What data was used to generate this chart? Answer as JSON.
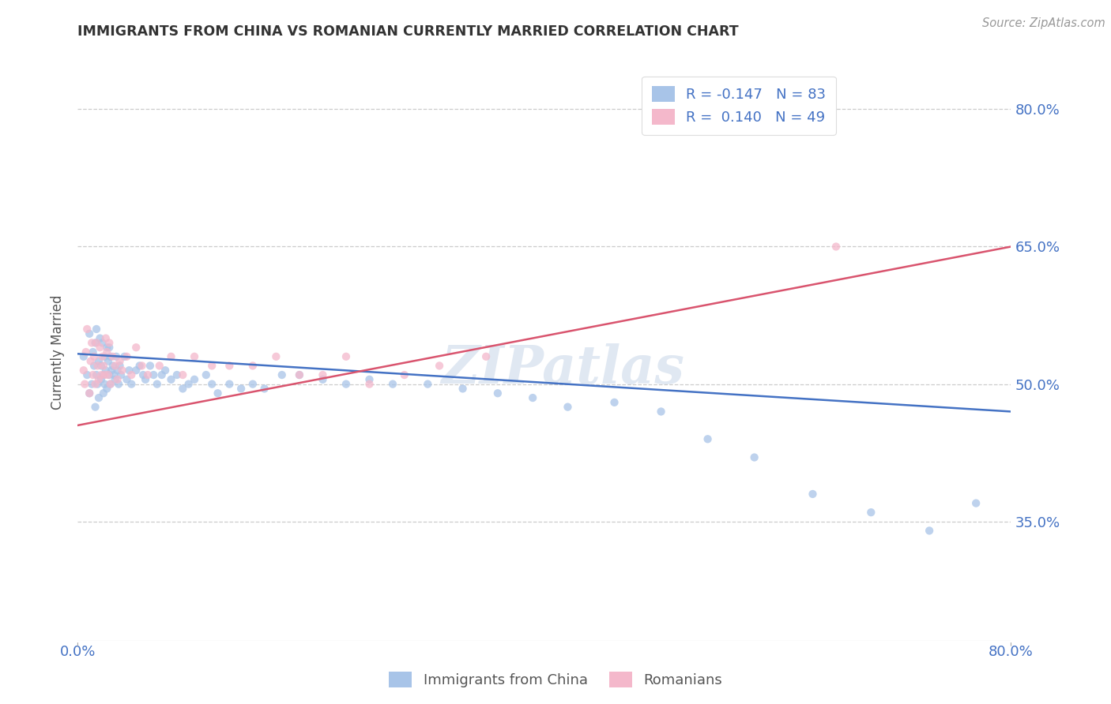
{
  "title": "IMMIGRANTS FROM CHINA VS ROMANIAN CURRENTLY MARRIED CORRELATION CHART",
  "source": "Source: ZipAtlas.com",
  "ylabel": "Currently Married",
  "xlim": [
    0.0,
    0.8
  ],
  "ylim": [
    0.22,
    0.85
  ],
  "yticks": [
    0.35,
    0.5,
    0.65,
    0.8
  ],
  "ytick_labels": [
    "35.0%",
    "50.0%",
    "65.0%",
    "80.0%"
  ],
  "xticks": [
    0.0,
    0.8
  ],
  "xtick_labels": [
    "0.0%",
    "80.0%"
  ],
  "china_color": "#a8c4e8",
  "romania_color": "#f4b8cb",
  "china_line_color": "#4472c4",
  "romania_line_color": "#d9546e",
  "R_china": -0.147,
  "N_china": 83,
  "R_romania": 0.14,
  "N_romania": 49,
  "legend_label_china": "Immigrants from China",
  "legend_label_romania": "Romanians",
  "watermark": "ZIPatlas",
  "background_color": "#ffffff",
  "grid_color": "#cccccc",
  "axis_label_color": "#4472c4",
  "china_trend": {
    "x_start": 0.0,
    "x_end": 0.8,
    "y_start": 0.533,
    "y_end": 0.47
  },
  "romania_trend": {
    "x_start": 0.0,
    "x_end": 0.8,
    "y_start": 0.455,
    "y_end": 0.65
  },
  "china_scatter_x": [
    0.005,
    0.008,
    0.01,
    0.01,
    0.012,
    0.013,
    0.014,
    0.015,
    0.015,
    0.016,
    0.016,
    0.017,
    0.018,
    0.018,
    0.019,
    0.02,
    0.02,
    0.021,
    0.022,
    0.022,
    0.023,
    0.023,
    0.024,
    0.025,
    0.025,
    0.026,
    0.027,
    0.027,
    0.028,
    0.028,
    0.029,
    0.03,
    0.031,
    0.032,
    0.033,
    0.034,
    0.035,
    0.036,
    0.037,
    0.04,
    0.042,
    0.044,
    0.046,
    0.05,
    0.053,
    0.056,
    0.058,
    0.062,
    0.065,
    0.068,
    0.072,
    0.075,
    0.08,
    0.085,
    0.09,
    0.095,
    0.1,
    0.11,
    0.115,
    0.12,
    0.13,
    0.14,
    0.15,
    0.16,
    0.175,
    0.19,
    0.21,
    0.23,
    0.25,
    0.27,
    0.3,
    0.33,
    0.36,
    0.39,
    0.42,
    0.46,
    0.5,
    0.54,
    0.58,
    0.63,
    0.68,
    0.73,
    0.77
  ],
  "china_scatter_y": [
    0.53,
    0.51,
    0.49,
    0.555,
    0.5,
    0.535,
    0.52,
    0.545,
    0.475,
    0.51,
    0.56,
    0.5,
    0.525,
    0.485,
    0.55,
    0.505,
    0.52,
    0.545,
    0.51,
    0.49,
    0.53,
    0.5,
    0.515,
    0.54,
    0.495,
    0.525,
    0.51,
    0.54,
    0.5,
    0.53,
    0.515,
    0.52,
    0.51,
    0.505,
    0.53,
    0.515,
    0.5,
    0.52,
    0.51,
    0.53,
    0.505,
    0.515,
    0.5,
    0.515,
    0.52,
    0.51,
    0.505,
    0.52,
    0.51,
    0.5,
    0.51,
    0.515,
    0.505,
    0.51,
    0.495,
    0.5,
    0.505,
    0.51,
    0.5,
    0.49,
    0.5,
    0.495,
    0.5,
    0.495,
    0.51,
    0.51,
    0.505,
    0.5,
    0.505,
    0.5,
    0.5,
    0.495,
    0.49,
    0.485,
    0.475,
    0.48,
    0.47,
    0.44,
    0.42,
    0.38,
    0.36,
    0.34,
    0.37
  ],
  "romania_scatter_x": [
    0.005,
    0.006,
    0.007,
    0.008,
    0.01,
    0.011,
    0.012,
    0.013,
    0.014,
    0.015,
    0.016,
    0.017,
    0.018,
    0.019,
    0.02,
    0.021,
    0.022,
    0.023,
    0.024,
    0.025,
    0.026,
    0.027,
    0.028,
    0.03,
    0.032,
    0.034,
    0.036,
    0.038,
    0.042,
    0.046,
    0.05,
    0.055,
    0.06,
    0.07,
    0.08,
    0.09,
    0.1,
    0.115,
    0.13,
    0.15,
    0.17,
    0.19,
    0.21,
    0.23,
    0.25,
    0.28,
    0.31,
    0.35,
    0.65
  ],
  "romania_scatter_y": [
    0.515,
    0.5,
    0.535,
    0.56,
    0.49,
    0.525,
    0.545,
    0.51,
    0.53,
    0.5,
    0.545,
    0.52,
    0.505,
    0.54,
    0.51,
    0.53,
    0.52,
    0.51,
    0.55,
    0.535,
    0.51,
    0.545,
    0.5,
    0.53,
    0.52,
    0.505,
    0.525,
    0.515,
    0.53,
    0.51,
    0.54,
    0.52,
    0.51,
    0.52,
    0.53,
    0.51,
    0.53,
    0.52,
    0.52,
    0.52,
    0.53,
    0.51,
    0.51,
    0.53,
    0.5,
    0.51,
    0.52,
    0.53,
    0.65
  ]
}
